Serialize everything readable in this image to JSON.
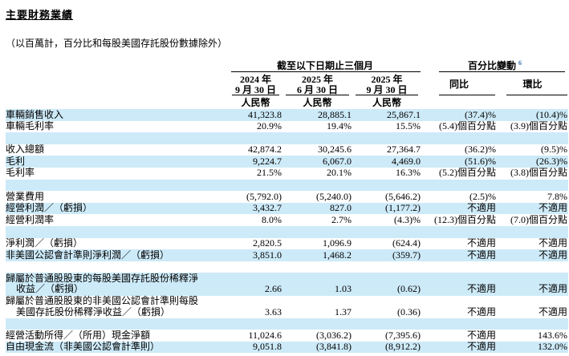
{
  "page": {
    "title": "主要財務業績",
    "subtitle": "（以百萬計，百分比和每股美國存託股份數據除外）"
  },
  "colors": {
    "stripe": "#cdeaf8",
    "footnote_ref": "#3a75b0"
  },
  "table": {
    "group_headers": {
      "periods": "截至以下日期止三個月",
      "pct_change": "百分比變動",
      "pct_change_footnote": "6"
    },
    "period_columns": [
      {
        "year": "2024 年",
        "date": "9 月 30 日",
        "currency": "人民幣"
      },
      {
        "year": "2025 年",
        "date": "6 月 30 日",
        "currency": "人民幣"
      },
      {
        "year": "2025 年",
        "date": "9 月 30 日",
        "currency": "人民幣"
      }
    ],
    "change_columns": [
      {
        "label": "同比"
      },
      {
        "label": "環比"
      }
    ],
    "rows": [
      {
        "type": "data",
        "label": "車輛銷售收入",
        "cells": [
          "41,323.8",
          "28,885.1",
          "25,867.1",
          "(37.4)%",
          "(10.4)%"
        ]
      },
      {
        "type": "data",
        "label": "車輛毛利率",
        "cells": [
          "20.9%",
          "19.4%",
          "15.5%",
          "(5.4)個百分點",
          "(3.9)個百分點"
        ]
      },
      {
        "type": "blank"
      },
      {
        "type": "data",
        "label": "收入總額",
        "cells": [
          "42,874.2",
          "30,245.6",
          "27,364.7",
          "(36.2)%",
          "(9.5)%"
        ]
      },
      {
        "type": "data",
        "label": "毛利",
        "cells": [
          "9,224.7",
          "6,067.0",
          "4,469.0",
          "(51.6)%",
          "(26.3)%"
        ]
      },
      {
        "type": "data",
        "label": "毛利率",
        "cells": [
          "21.5%",
          "20.1%",
          "16.3%",
          "(5.2)個百分點",
          "(3.8)個百分點"
        ]
      },
      {
        "type": "blank"
      },
      {
        "type": "data",
        "label": "營業費用",
        "cells": [
          "(5,792.0)",
          "(5,240.0)",
          "(5,646.2)",
          "(2.5)%",
          "7.8%"
        ]
      },
      {
        "type": "data",
        "label": "經營利潤／（虧損）",
        "cells": [
          "3,432.7",
          "827.0",
          "(1,177.2)",
          "不適用",
          "不適用"
        ]
      },
      {
        "type": "data",
        "label": "經營利潤率",
        "cells": [
          "8.0%",
          "2.7%",
          "(4.3)%",
          "(12.3)個百分點",
          "(7.0)個百分點"
        ]
      },
      {
        "type": "blank"
      },
      {
        "type": "data",
        "label": "淨利潤／（虧損）",
        "cells": [
          "2,820.5",
          "1,096.9",
          "(624.4)",
          "不適用",
          "不適用"
        ]
      },
      {
        "type": "data",
        "label": "非美國公認會計準則淨利潤／（虧損）",
        "cells": [
          "3,851.0",
          "1,468.2",
          "(359.7)",
          "不適用",
          "不適用"
        ]
      },
      {
        "type": "blank"
      },
      {
        "type": "data",
        "label": "歸屬於普通股股東的每股美國存託股份稀釋淨",
        "label2": "收益／（虧損）",
        "cells": [
          "2.66",
          "1.03",
          "(0.62)",
          "不適用",
          "不適用"
        ]
      },
      {
        "type": "data",
        "label": "歸屬於普通股股東的非美國公認會計準則每股",
        "label2": "美國存託股份稀釋淨收益／（虧損）",
        "cells": [
          "3.63",
          "1.37",
          "(0.36)",
          "不適用",
          "不適用"
        ]
      },
      {
        "type": "blank"
      },
      {
        "type": "data",
        "label": "經營活動所得／（所用）現金淨額",
        "cells": [
          "11,024.6",
          "(3,036.2)",
          "(7,395.6)",
          "不適用",
          "143.6%"
        ]
      },
      {
        "type": "data",
        "label": "自由現金流（非美國公認會計準則）",
        "cells": [
          "9,051.8",
          "(3,841.8)",
          "(8,912.2)",
          "不適用",
          "132.0%"
        ]
      }
    ]
  }
}
